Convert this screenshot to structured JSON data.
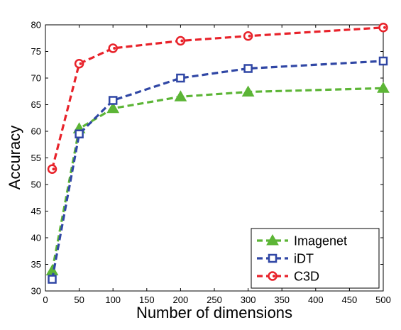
{
  "chart_data": {
    "type": "line",
    "xlabel": "Number of dimensions",
    "ylabel": "Accuracy",
    "xlim": [
      0,
      500
    ],
    "ylim": [
      30,
      80
    ],
    "xticks": [
      "0",
      "50",
      "100",
      "150",
      "200",
      "250",
      "300",
      "350",
      "400",
      "450",
      "500"
    ],
    "yticks": [
      "30",
      "35",
      "40",
      "45",
      "50",
      "55",
      "60",
      "65",
      "70",
      "75",
      "80"
    ],
    "grid": false,
    "legend_position": "bottom-right",
    "x": [
      10,
      50,
      100,
      200,
      300,
      500
    ],
    "series": [
      {
        "name": "Imagenet",
        "color": "#5cb536",
        "marker": "triangle",
        "linestyle": "dashed",
        "values": [
          33.8,
          60.5,
          64.3,
          66.5,
          67.4,
          68.1
        ]
      },
      {
        "name": "iDT",
        "color": "#3047a5",
        "marker": "square",
        "linestyle": "dashed",
        "values": [
          32.2,
          59.5,
          65.8,
          70.0,
          71.8,
          73.2
        ]
      },
      {
        "name": "C3D",
        "color": "#e8222a",
        "marker": "circle",
        "linestyle": "dashed",
        "values": [
          52.9,
          72.7,
          75.6,
          77.0,
          77.9,
          79.5
        ]
      }
    ]
  }
}
